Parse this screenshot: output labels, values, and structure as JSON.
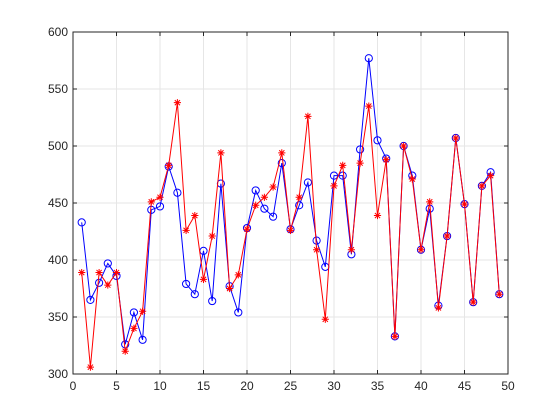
{
  "chart_data": {
    "type": "line",
    "grid": true,
    "xlim": [
      0,
      50
    ],
    "ylim": [
      300,
      600
    ],
    "x_ticks": [
      0,
      5,
      10,
      15,
      20,
      25,
      30,
      35,
      40,
      45,
      50
    ],
    "y_ticks": [
      300,
      350,
      400,
      450,
      500,
      550,
      600
    ],
    "x": [
      1,
      2,
      3,
      4,
      5,
      6,
      7,
      8,
      9,
      10,
      11,
      12,
      13,
      14,
      15,
      16,
      17,
      18,
      19,
      20,
      21,
      22,
      23,
      24,
      25,
      26,
      27,
      28,
      29,
      30,
      31,
      32,
      33,
      34,
      35,
      36,
      37,
      38,
      39,
      40,
      41,
      42,
      43,
      44,
      45,
      46,
      47,
      48,
      49
    ],
    "series": [
      {
        "marker": "circle",
        "color": "#0000ff",
        "values": [
          433,
          365,
          380,
          397,
          386,
          326,
          354,
          330,
          444,
          447,
          482,
          459,
          379,
          370,
          408,
          364,
          467,
          377,
          354,
          428,
          461,
          445,
          438,
          485,
          427,
          448,
          468,
          417,
          394,
          474,
          474,
          405,
          497,
          577,
          505,
          489,
          333,
          500,
          474,
          409,
          445,
          360,
          421,
          507,
          449,
          363,
          465,
          477,
          370
        ]
      },
      {
        "marker": "asterisk",
        "color": "#ff0000",
        "values": [
          389,
          306,
          389,
          378,
          389,
          320,
          340,
          355,
          451,
          455,
          483,
          538,
          426,
          439,
          383,
          421,
          494,
          375,
          387,
          427,
          448,
          455,
          464,
          494,
          426,
          455,
          526,
          409,
          348,
          465,
          483,
          409,
          485,
          535,
          439,
          488,
          333,
          500,
          471,
          409,
          451,
          358,
          421,
          507,
          449,
          363,
          465,
          474,
          370
        ]
      }
    ]
  }
}
